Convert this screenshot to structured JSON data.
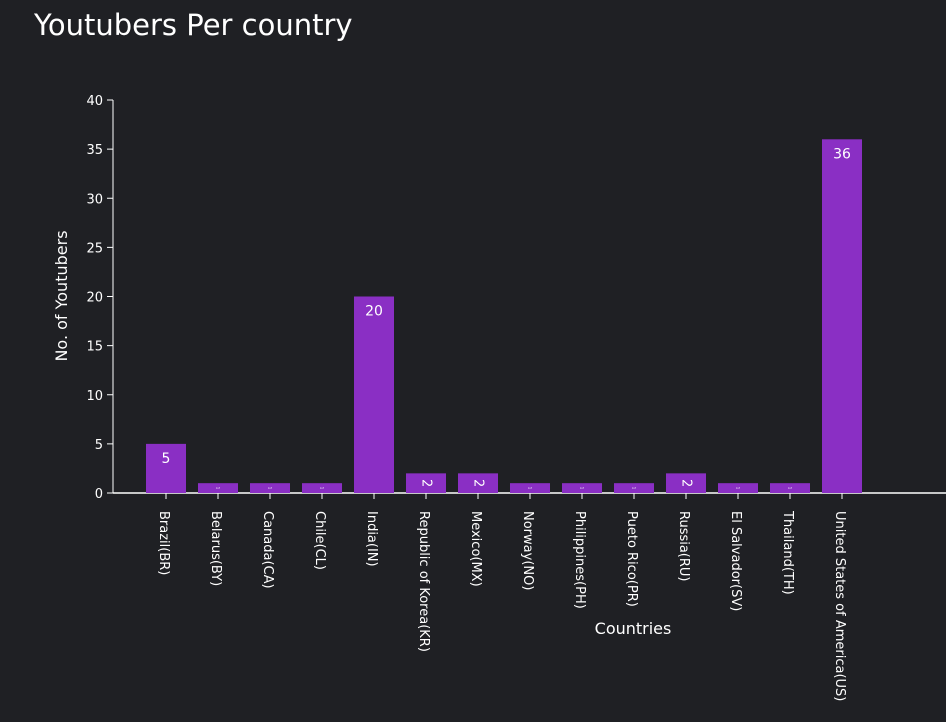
{
  "chart_data": {
    "type": "bar",
    "title": "Youtubers Per country",
    "xlabel": "Countries",
    "ylabel": "No. of Youtubers",
    "categories": [
      "Brazil(BR)",
      "Belarus(BY)",
      "Canada(CA)",
      "Chile(CL)",
      "India(IN)",
      "Republic of Korea(KR)",
      "Mexico(MX)",
      "Norway(NO)",
      "Philippines(PH)",
      "Pueto Rico(PR)",
      "Russia(RU)",
      "El Salvador(SV)",
      "Thailand(TH)",
      "United States of America(US)"
    ],
    "values": [
      5,
      1,
      1,
      1,
      20,
      2,
      2,
      1,
      1,
      1,
      2,
      1,
      1,
      36
    ],
    "yticks": [
      0,
      5,
      10,
      15,
      20,
      25,
      30,
      35,
      40
    ],
    "ylim": [
      0,
      40
    ],
    "grid": false,
    "colors": {
      "bar": "#8a2fc4",
      "background": "#1f2024",
      "axis": "#ffffff",
      "text": "#ffffff"
    }
  }
}
